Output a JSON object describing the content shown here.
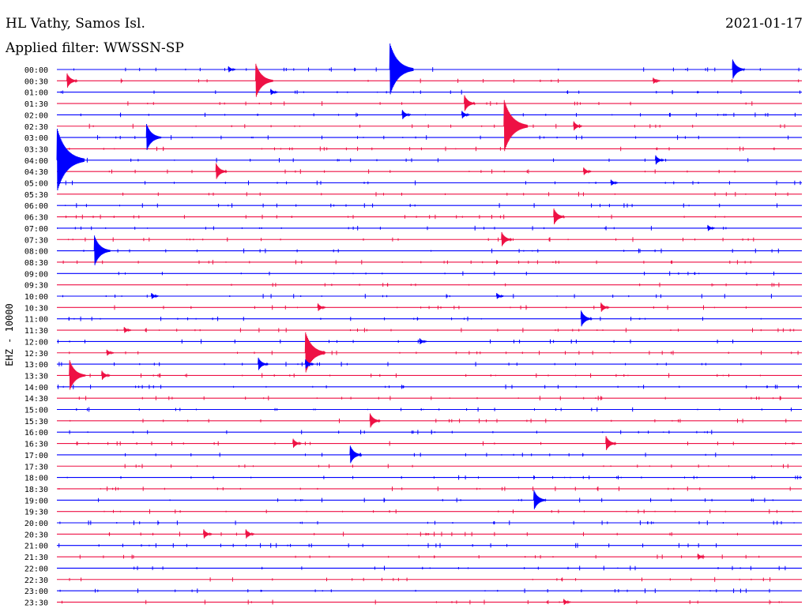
{
  "header": {
    "station": "HL Vathy, Samos Isl.",
    "filter": "Applied filter: WWSSN-SP",
    "date": "2021-01-17",
    "channel": "EHZ - 10000"
  },
  "colors": {
    "blue": "#0000ff",
    "red": "#ee1144",
    "axis_text": "#000000"
  },
  "chart_data": {
    "type": "line",
    "title": "HL Vathy, Samos Isl.",
    "subtitle": "Applied filter: WWSSN-SP",
    "date": "2021-01-17",
    "ylabel": "EHZ - 10000",
    "xlabel": "",
    "minutes_per_row": 30,
    "row_colors": [
      "blue",
      "red"
    ],
    "rows": [
      "00:00",
      "00:30",
      "01:00",
      "01:30",
      "02:00",
      "02:30",
      "03:00",
      "03:30",
      "04:00",
      "04:30",
      "05:00",
      "05:30",
      "06:00",
      "06:30",
      "07:00",
      "07:30",
      "08:00",
      "08:30",
      "09:00",
      "09:30",
      "10:00",
      "10:30",
      "11:00",
      "11:30",
      "12:00",
      "12:30",
      "13:00",
      "13:30",
      "14:00",
      "14:30",
      "15:00",
      "15:30",
      "16:00",
      "16:30",
      "17:00",
      "17:30",
      "18:00",
      "18:30",
      "19:00",
      "19:30",
      "20:00",
      "20:30",
      "21:00",
      "21:30",
      "22:00",
      "22:30",
      "23:00",
      "23:30"
    ],
    "events": [
      {
        "row": 0,
        "minute": 6.9,
        "amp": 0.2
      },
      {
        "row": 0,
        "minute": 13.4,
        "amp": 1.5
      },
      {
        "row": 0,
        "minute": 27.2,
        "amp": 0.6
      },
      {
        "row": 1,
        "minute": 0.4,
        "amp": 0.45
      },
      {
        "row": 1,
        "minute": 8.0,
        "amp": 1.0
      },
      {
        "row": 1,
        "minute": 24.0,
        "amp": 0.2
      },
      {
        "row": 2,
        "minute": 8.6,
        "amp": 0.2
      },
      {
        "row": 3,
        "minute": 16.4,
        "amp": 0.5
      },
      {
        "row": 4,
        "minute": 13.9,
        "amp": 0.3
      },
      {
        "row": 4,
        "minute": 16.3,
        "amp": 0.25
      },
      {
        "row": 5,
        "minute": 18.0,
        "amp": 1.5
      },
      {
        "row": 5,
        "minute": 20.8,
        "amp": 0.3
      },
      {
        "row": 6,
        "minute": 3.6,
        "amp": 0.8
      },
      {
        "row": 8,
        "minute": 0.0,
        "amp": 1.8
      },
      {
        "row": 8,
        "minute": 24.1,
        "amp": 0.3
      },
      {
        "row": 9,
        "minute": 6.4,
        "amp": 0.5
      },
      {
        "row": 9,
        "minute": 21.2,
        "amp": 0.25
      },
      {
        "row": 10,
        "minute": 22.3,
        "amp": 0.2
      },
      {
        "row": 13,
        "minute": 20.0,
        "amp": 0.5
      },
      {
        "row": 14,
        "minute": 26.2,
        "amp": 0.2
      },
      {
        "row": 15,
        "minute": 17.9,
        "amp": 0.45
      },
      {
        "row": 16,
        "minute": 1.5,
        "amp": 0.9
      },
      {
        "row": 20,
        "minute": 3.8,
        "amp": 0.2
      },
      {
        "row": 20,
        "minute": 17.7,
        "amp": 0.2
      },
      {
        "row": 21,
        "minute": 10.5,
        "amp": 0.25
      },
      {
        "row": 21,
        "minute": 21.9,
        "amp": 0.3
      },
      {
        "row": 22,
        "minute": 21.1,
        "amp": 0.5
      },
      {
        "row": 23,
        "minute": 2.7,
        "amp": 0.2
      },
      {
        "row": 24,
        "minute": 14.6,
        "amp": 0.2
      },
      {
        "row": 25,
        "minute": 10.0,
        "amp": 1.2
      },
      {
        "row": 25,
        "minute": 2.0,
        "amp": 0.2
      },
      {
        "row": 26,
        "minute": 8.1,
        "amp": 0.4
      },
      {
        "row": 26,
        "minute": 10.0,
        "amp": 0.3
      },
      {
        "row": 27,
        "minute": 0.5,
        "amp": 0.9
      },
      {
        "row": 27,
        "minute": 1.8,
        "amp": 0.3
      },
      {
        "row": 31,
        "minute": 12.6,
        "amp": 0.45
      },
      {
        "row": 33,
        "minute": 9.5,
        "amp": 0.3
      },
      {
        "row": 33,
        "minute": 22.1,
        "amp": 0.45
      },
      {
        "row": 34,
        "minute": 11.8,
        "amp": 0.55
      },
      {
        "row": 38,
        "minute": 19.2,
        "amp": 0.6
      },
      {
        "row": 41,
        "minute": 5.9,
        "amp": 0.3
      },
      {
        "row": 41,
        "minute": 7.6,
        "amp": 0.3
      },
      {
        "row": 43,
        "minute": 25.8,
        "amp": 0.2
      },
      {
        "row": 47,
        "minute": 20.4,
        "amp": 0.2
      }
    ]
  }
}
